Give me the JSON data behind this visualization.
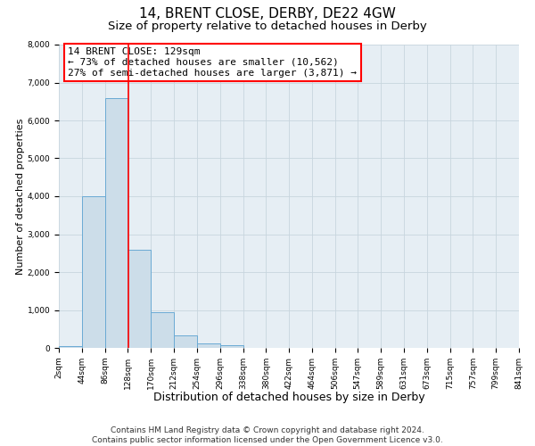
{
  "title": "14, BRENT CLOSE, DERBY, DE22 4GW",
  "subtitle": "Size of property relative to detached houses in Derby",
  "xlabel": "Distribution of detached houses by size in Derby",
  "ylabel": "Number of detached properties",
  "bin_edges": [
    2,
    44,
    86,
    128,
    170,
    212,
    254,
    296,
    338,
    380,
    422,
    464,
    506,
    547,
    589,
    631,
    673,
    715,
    757,
    799,
    841
  ],
  "bar_heights": [
    50,
    4000,
    6600,
    2600,
    950,
    320,
    120,
    80,
    0,
    0,
    0,
    0,
    0,
    0,
    0,
    0,
    0,
    0,
    0,
    0
  ],
  "bar_color": "#ccdde9",
  "bar_edge_color": "#6aaad4",
  "property_line_x": 129,
  "property_line_color": "red",
  "annotation_line1": "14 BRENT CLOSE: 129sqm",
  "annotation_line2": "← 73% of detached houses are smaller (10,562)",
  "annotation_line3": "27% of semi-detached houses are larger (3,871) →",
  "annotation_box_facecolor": "white",
  "annotation_box_edgecolor": "red",
  "ylim_max": 8000,
  "yticks": [
    0,
    1000,
    2000,
    3000,
    4000,
    5000,
    6000,
    7000,
    8000
  ],
  "grid_color": "#c8d5de",
  "bg_color": "#e6eef4",
  "footnote_line1": "Contains HM Land Registry data © Crown copyright and database right 2024.",
  "footnote_line2": "Contains public sector information licensed under the Open Government Licence v3.0.",
  "title_fontsize": 11,
  "subtitle_fontsize": 9.5,
  "xlabel_fontsize": 9,
  "ylabel_fontsize": 8,
  "tick_fontsize": 6.5,
  "annotation_fontsize": 8,
  "footnote_fontsize": 6.5
}
